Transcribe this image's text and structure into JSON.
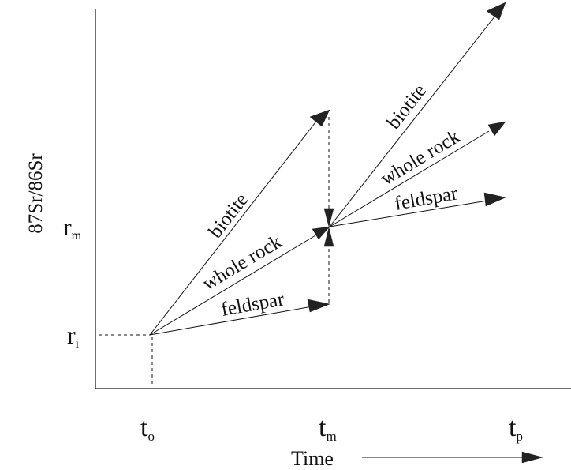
{
  "diagram": {
    "y_axis_label": "87Sr/86Sr",
    "x_axis_label": "Time",
    "y_ticks": {
      "rm": {
        "base": "r",
        "sub": "m"
      },
      "ri": {
        "base": "r",
        "sub": "i"
      }
    },
    "x_ticks": {
      "to": {
        "base": "t",
        "sub": "o"
      },
      "tm": {
        "base": "t",
        "sub": "m"
      },
      "tp": {
        "base": "t",
        "sub": "p"
      }
    },
    "stage1_labels": {
      "biotite": "biotite",
      "whole_rock": "whole rock",
      "feldspar": "feldspar"
    },
    "stage2_labels": {
      "biotite": "biotite",
      "whole_rock": "whole rock",
      "feldspar": "feldspar"
    }
  }
}
